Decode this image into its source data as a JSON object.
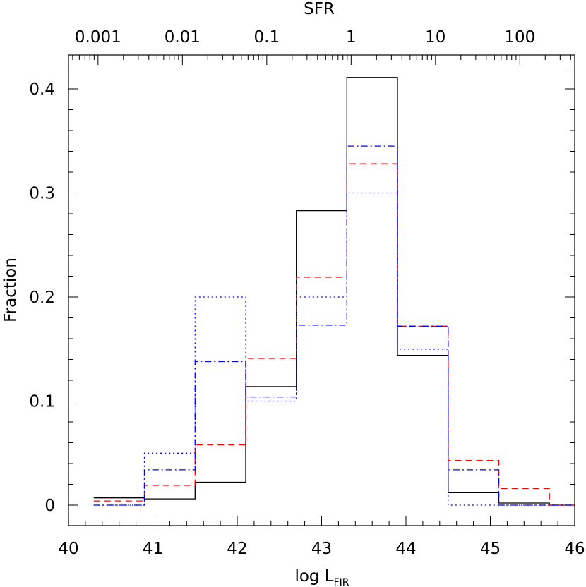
{
  "chart_data": {
    "type": "step",
    "xlabel": "log L",
    "xlabel_sub": "FIR",
    "ylabel": "Fraction",
    "top_axis_title": "SFR",
    "xlim": [
      40,
      46
    ],
    "ylim": [
      -0.02,
      0.43
    ],
    "x_ticks": [
      "40",
      "41",
      "42",
      "43",
      "44",
      "45",
      "46"
    ],
    "y_ticks": [
      "0",
      "0.1",
      "0.2",
      "0.3",
      "0.4"
    ],
    "top_ticks": [
      {
        "label": "0.001",
        "log_l": 40.35
      },
      {
        "label": "0.01",
        "log_l": 41.35
      },
      {
        "label": "0.1",
        "log_l": 42.35
      },
      {
        "label": "1",
        "log_l": 43.35
      },
      {
        "label": "10",
        "log_l": 44.35
      },
      {
        "label": "100",
        "log_l": 45.35
      }
    ],
    "bin_edges": [
      40.3,
      40.9,
      41.5,
      42.1,
      42.7,
      43.3,
      43.9,
      44.5,
      45.1,
      45.7,
      46.0
    ],
    "series": [
      {
        "style": "solid",
        "color": "#000000",
        "values": [
          0.007,
          0.006,
          0.022,
          0.114,
          0.283,
          0.411,
          0.144,
          0.012,
          0.002,
          0.0
        ]
      },
      {
        "style": "dashed",
        "color": "#ff0000",
        "values": [
          0.004,
          0.019,
          0.058,
          0.141,
          0.219,
          0.328,
          0.172,
          0.043,
          0.016,
          0.0
        ]
      },
      {
        "style": "dashdot",
        "color": "#0000ff",
        "values": [
          0.0,
          0.034,
          0.138,
          0.104,
          0.173,
          0.345,
          0.172,
          0.034,
          0.0,
          0.0
        ]
      },
      {
        "style": "dotted",
        "color": "#0000ff",
        "values": [
          0.0,
          0.05,
          0.2,
          0.1,
          0.2,
          0.3,
          0.15,
          0.0,
          0.0,
          0.0
        ]
      }
    ]
  }
}
